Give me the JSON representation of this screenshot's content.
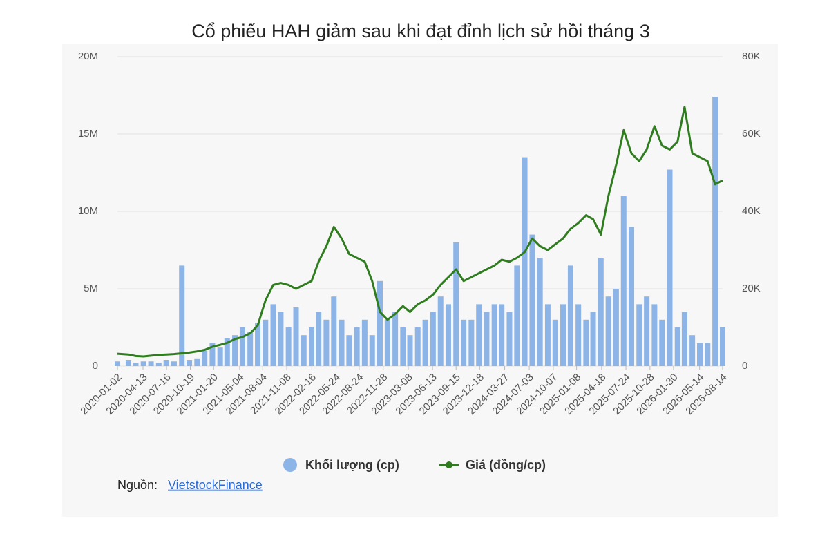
{
  "chart_data": {
    "type": "bar-line",
    "title": "Cổ phiếu HAH giảm sau khi đạt đỉnh lịch sử hồi tháng 3",
    "x": [
      "2020-01-02",
      "2020-02-15",
      "2020-03-15",
      "2020-04-15",
      "2020-05-15",
      "2020-06-15",
      "2020-07-15",
      "2020-08-15",
      "2020-09-15",
      "2020-10-15",
      "2020-11-15",
      "2020-12-15",
      "2021-01-15",
      "2021-02-15",
      "2021-03-15",
      "2021-04-15",
      "2021-05-15",
      "2021-06-15",
      "2021-07-15",
      "2021-08-15",
      "2021-09-15",
      "2021-10-15",
      "2021-11-15",
      "2021-12-15",
      "2022-01-15",
      "2022-02-15",
      "2022-03-15",
      "2022-04-15",
      "2022-05-15",
      "2022-06-15",
      "2022-07-15",
      "2022-08-15",
      "2022-09-15",
      "2022-10-15",
      "2022-11-15",
      "2022-12-15",
      "2023-01-15",
      "2023-02-15",
      "2023-03-15",
      "2023-04-15",
      "2023-05-15",
      "2023-06-15",
      "2023-07-15",
      "2023-08-15",
      "2023-09-15",
      "2023-10-15",
      "2023-11-15",
      "2023-12-15",
      "2024-01-15",
      "2024-02-15",
      "2024-03-15",
      "2024-04-15",
      "2024-05-15",
      "2024-06-15",
      "2024-07-15",
      "2024-08-15",
      "2024-09-15",
      "2024-10-15",
      "2024-11-15",
      "2024-12-15",
      "2025-01-15",
      "2025-02-15",
      "2025-03-15",
      "2025-04-15",
      "2025-05-15",
      "2025-06-15",
      "2025-07-15",
      "2025-08-15",
      "2025-09-15",
      "2025-10-15",
      "2025-11-15",
      "2025-12-15",
      "2026-01-15",
      "2026-02-15",
      "2026-03-15",
      "2026-04-15",
      "2026-05-15",
      "2026-06-15",
      "2026-07-15",
      "2026-08-14"
    ],
    "series": [
      {
        "name": "Khối lượng (cp)",
        "color": "#8db4e6",
        "type": "bar",
        "axis": "y",
        "values": [
          300000,
          400000,
          200000,
          300000,
          300000,
          200000,
          400000,
          300000,
          6500000,
          400000,
          500000,
          1000000,
          1500000,
          1200000,
          1800000,
          2000000,
          2500000,
          2200000,
          2800000,
          3000000,
          4000000,
          3500000,
          2500000,
          3800000,
          2000000,
          2500000,
          3500000,
          3000000,
          4500000,
          3000000,
          2000000,
          2500000,
          3000000,
          2000000,
          5500000,
          3000000,
          3500000,
          2500000,
          2000000,
          2500000,
          3000000,
          3500000,
          4500000,
          4000000,
          8000000,
          3000000,
          3000000,
          4000000,
          3500000,
          4000000,
          4000000,
          3500000,
          6500000,
          13500000,
          8500000,
          7000000,
          4000000,
          3000000,
          4000000,
          6500000,
          4000000,
          3000000,
          3500000,
          7000000,
          4500000,
          5000000,
          11000000,
          9000000,
          4000000,
          4500000,
          4000000,
          3000000,
          12700000,
          2500000,
          3500000,
          2000000,
          1500000,
          1500000,
          17400000,
          2500000
        ]
      },
      {
        "name": "Giá (đồng/cp)",
        "color": "#2f7d1f",
        "type": "line",
        "axis": "y2",
        "values": [
          3200,
          3000,
          2600,
          2500,
          2700,
          2900,
          3000,
          3100,
          3300,
          3500,
          3800,
          4200,
          5000,
          5500,
          6000,
          7000,
          7500,
          8500,
          10500,
          17000,
          21000,
          21500,
          21000,
          20000,
          21000,
          22000,
          27000,
          31000,
          36000,
          33000,
          29000,
          28000,
          27000,
          22000,
          14000,
          12000,
          13500,
          15500,
          14000,
          16000,
          17000,
          18500,
          21000,
          23000,
          25000,
          22000,
          23000,
          24000,
          25000,
          26000,
          27500,
          27000,
          28000,
          29500,
          33000,
          31000,
          30000,
          31500,
          33000,
          35500,
          37000,
          39000,
          38000,
          34000,
          44000,
          52000,
          61000,
          55000,
          53000,
          56000,
          62000,
          57000,
          56000,
          58000,
          67000,
          55000,
          54000,
          53000,
          47000,
          48000
        ]
      }
    ],
    "xlim": [
      "2020-01-02",
      "2026-08-14"
    ],
    "xticks": [
      "2020-01-02",
      "2020-04-13",
      "2020-07-16",
      "2020-10-19",
      "2021-01-20",
      "2021-05-04",
      "2021-08-04",
      "2021-11-08",
      "2022-02-16",
      "2022-05-24",
      "2022-08-24",
      "2022-11-28",
      "2023-03-08",
      "2023-06-13",
      "2023-09-15",
      "2023-12-18",
      "2024-03-27",
      "2024-07-03",
      "2024-10-07",
      "2025-01-08",
      "2025-04-18",
      "2025-07-24",
      "2025-10-28",
      "2026-01-30",
      "2026-05-14",
      "2026-08-14"
    ],
    "ylim": [
      0,
      20000000
    ],
    "yticks": [
      0,
      {
        "value": 5000000,
        "label": "5M"
      },
      {
        "value": 10000000,
        "label": "10M"
      },
      {
        "value": 15000000,
        "label": "15M"
      },
      {
        "value": 20000000,
        "label": "20M"
      }
    ],
    "y2lim": [
      0,
      80000
    ],
    "y2ticks": [
      0,
      {
        "value": 20000,
        "label": "20K"
      },
      {
        "value": 40000,
        "label": "40K"
      },
      {
        "value": 60000,
        "label": "60K"
      },
      {
        "value": 80000,
        "label": "80K"
      }
    ],
    "grid": true,
    "legend": "bottom",
    "source_label": "Nguồn:",
    "source_link": "VietstockFinance"
  }
}
